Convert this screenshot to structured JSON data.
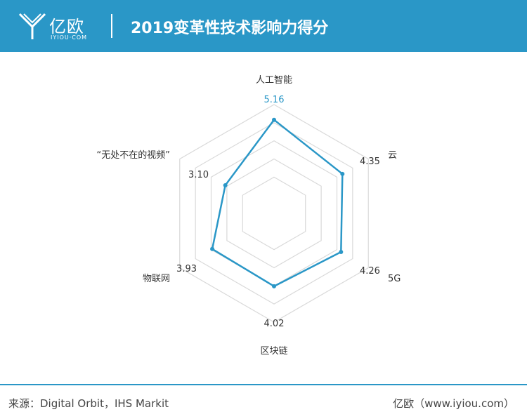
{
  "header": {
    "logo_text": "亿欧",
    "logo_sub": "IYIOU·COM",
    "title": "2019变革性技术影响力得分"
  },
  "chart_data": {
    "type": "radar",
    "title": "2019变革性技术影响力得分",
    "categories": [
      "人工智能",
      "云",
      "5G",
      "区块链",
      "物联网",
      "“无处不在的视频”"
    ],
    "values": [
      5.16,
      4.35,
      4.26,
      4.02,
      3.93,
      3.1
    ],
    "value_labels": [
      "5.16",
      "4.35",
      "4.26",
      "4.02",
      "3.93",
      "3.10"
    ],
    "rlim": [
      0,
      6
    ],
    "rings": 5,
    "grid": true,
    "line_color": "#2a97c7",
    "highlight_label_color": "#2a97c7",
    "grid_color": "#d9d9d9"
  },
  "footer": {
    "source": "来源：Digital Orbit，IHS Markit",
    "brand": "亿欧（www.iyiou.com）"
  },
  "colors": {
    "header_bg": "#2a97c7",
    "accent": "#2a97c7"
  }
}
